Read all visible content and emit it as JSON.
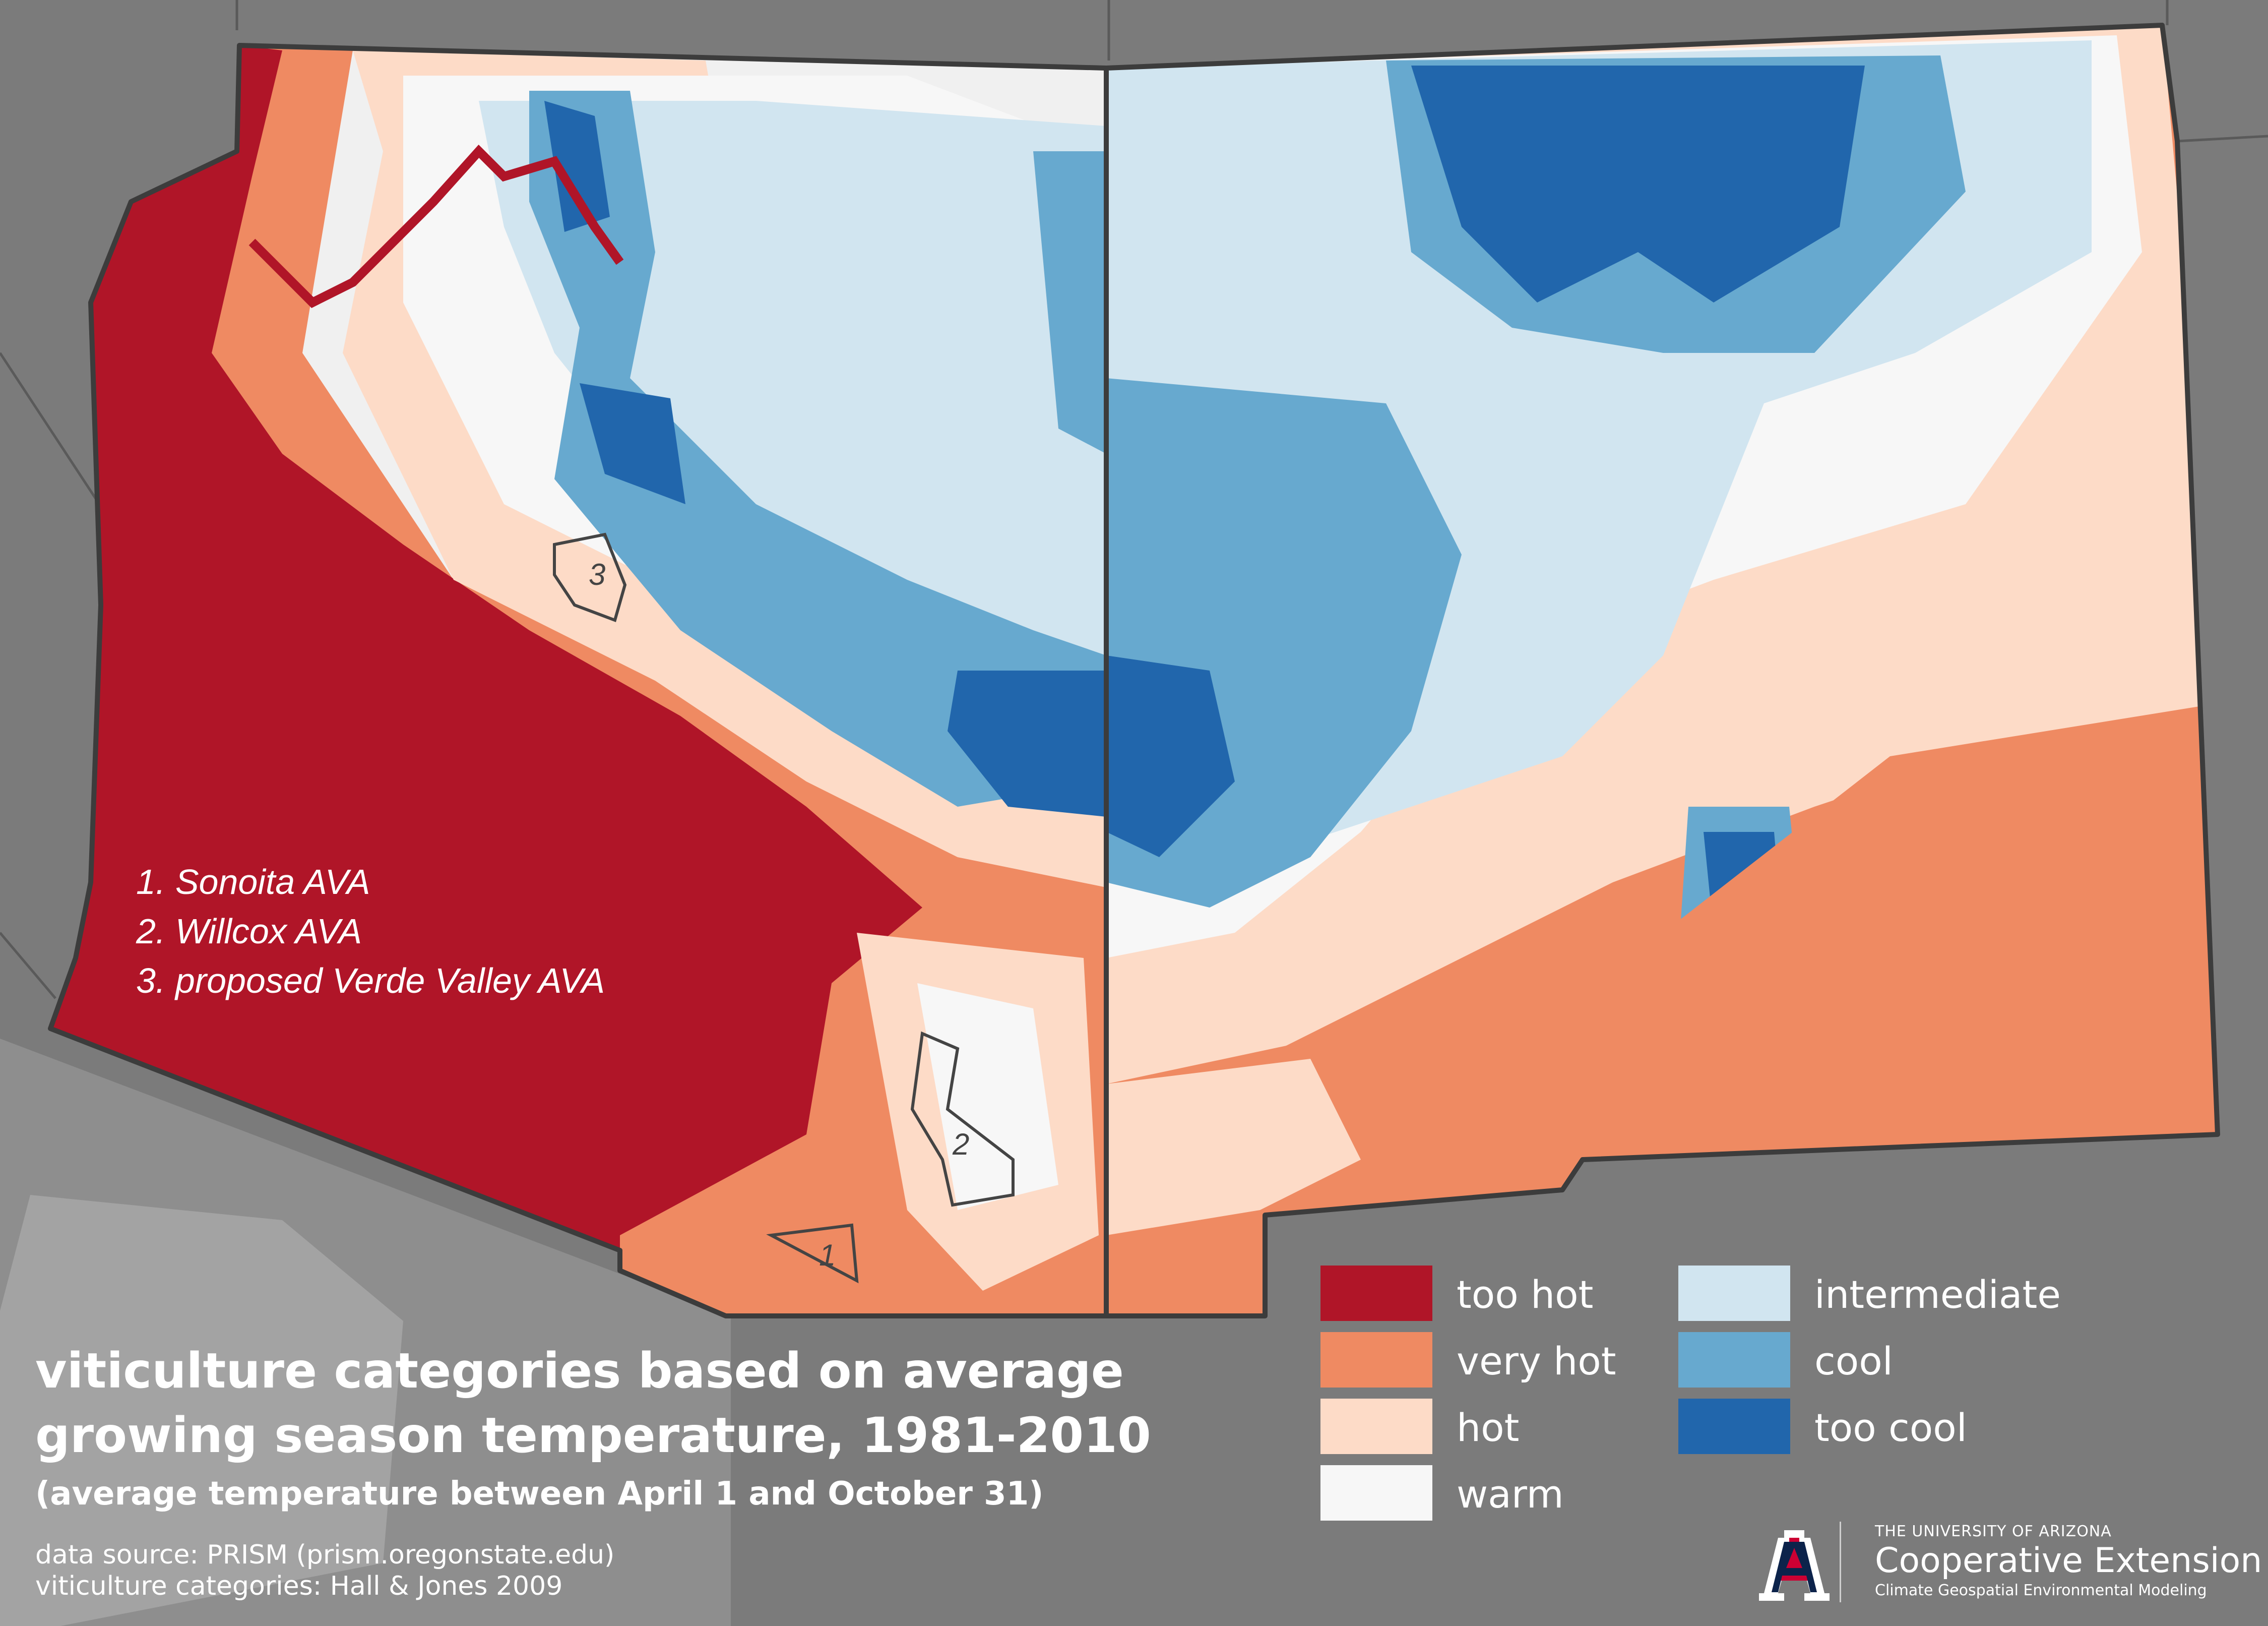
{
  "map": {
    "ava_list": [
      "1. Sonoita AVA",
      "2. Willcox AVA",
      "3. proposed Verde Valley AVA"
    ],
    "ava_markers": [
      "1",
      "2",
      "3"
    ]
  },
  "legend": {
    "items": [
      {
        "label": "too hot",
        "color": "#b01528"
      },
      {
        "label": "very hot",
        "color": "#ef8a62"
      },
      {
        "label": "hot",
        "color": "#fddbc7"
      },
      {
        "label": "warm",
        "color": "#f7f7f7"
      },
      {
        "label": "intermediate",
        "color": "#d1e5f0"
      },
      {
        "label": "cool",
        "color": "#67a9cf"
      },
      {
        "label": "too cool",
        "color": "#2166ac"
      }
    ]
  },
  "title": {
    "line1": "viticulture categories based on average",
    "line2": "growing season temperature, 1981-2010",
    "subtitle": "(average temperature between April 1 and October 31)"
  },
  "source": {
    "data": "data source: PRISM (prism.oregonstate.edu)",
    "categories": "viticulture categories: Hall & Jones 2009"
  },
  "logo": {
    "university": "THE UNIVERSITY OF ARIZONA",
    "name": "Cooperative Extension",
    "department": "Climate Geospatial Environmental Modeling",
    "brand_red": "#cc0033",
    "brand_navy": "#0c234b"
  }
}
